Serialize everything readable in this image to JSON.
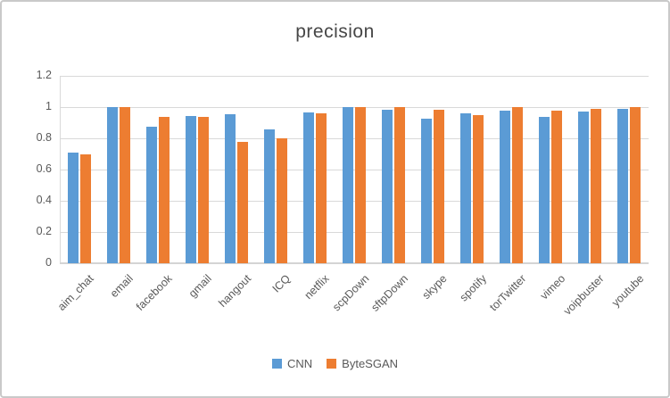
{
  "chart_data": {
    "type": "bar",
    "title": "precision",
    "categories": [
      "aim_chat",
      "email",
      "facebook",
      "gmail",
      "hangout",
      "ICQ",
      "netflix",
      "scpDown",
      "sftpDown",
      "skype",
      "spotify",
      "torTwitter",
      "vimeo",
      "voipbuster",
      "youtube"
    ],
    "series": [
      {
        "name": "CNN",
        "color": "#5B9BD5",
        "values": [
          0.71,
          1.0,
          0.875,
          0.945,
          0.955,
          0.855,
          0.965,
          1.0,
          0.985,
          0.925,
          0.96,
          0.98,
          0.935,
          0.97,
          0.99
        ]
      },
      {
        "name": "ByteSGAN",
        "color": "#ED7D31",
        "values": [
          0.7,
          1.0,
          0.94,
          0.94,
          0.775,
          0.8,
          0.96,
          1.0,
          1.0,
          0.985,
          0.95,
          1.0,
          0.98,
          0.99,
          1.0
        ]
      }
    ],
    "xlabel": "",
    "ylabel": "",
    "ylim": [
      0,
      1.2
    ],
    "ytick_step": 0.2,
    "yticks": [
      "0",
      "0.2",
      "0.4",
      "0.6",
      "0.8",
      "1",
      "1.2"
    ],
    "grid": true,
    "legend_position": "bottom"
  },
  "colors": {
    "gridline": "#d9d9d9",
    "axis_line": "#d4d4d4",
    "text": "#595959",
    "title": "#464646",
    "frame_border": "#c9c9c9",
    "background": "#ffffff"
  }
}
